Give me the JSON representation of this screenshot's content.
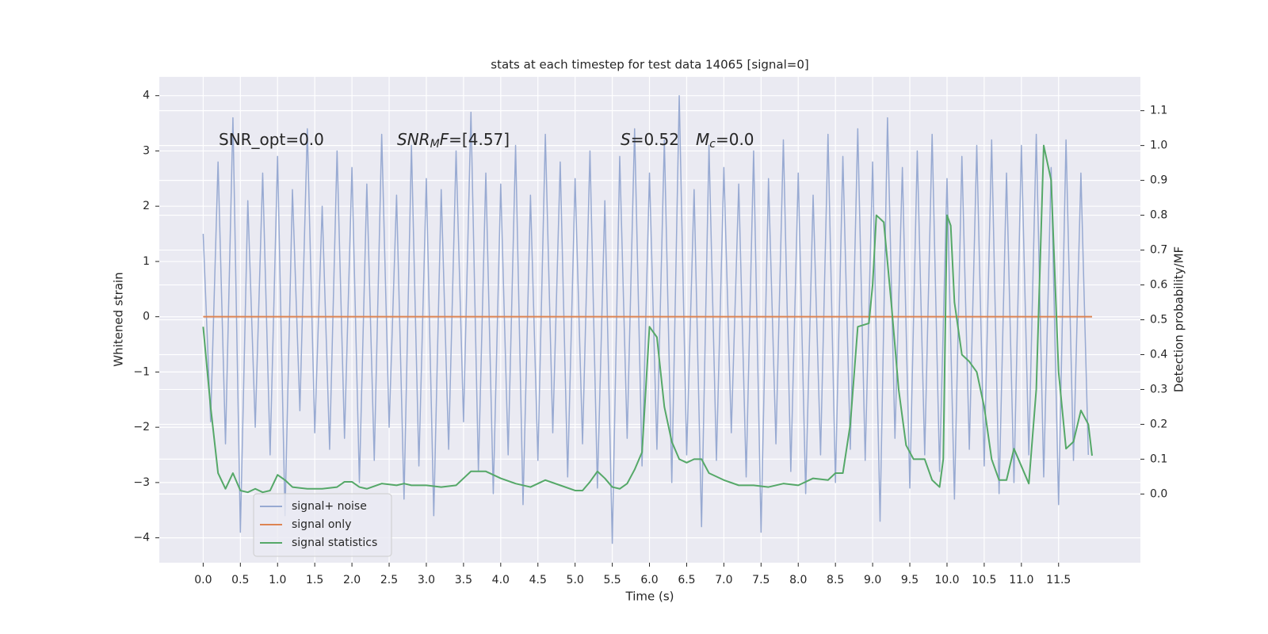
{
  "chart_data": {
    "type": "line",
    "title": "stats at each timestep for test data 14065 [signal=0]",
    "x_label": "Time (s)",
    "y_label": "Whitened strain",
    "y2_label": "Detection probability/MF",
    "xlim": [
      -0.59,
      12.6
    ],
    "ylim": [
      -4.45,
      4.34
    ],
    "y2lim": [
      -0.197,
      1.197
    ],
    "grid": true,
    "legend": "lower left",
    "xticks": [
      {
        "value": 0,
        "label": "0.0"
      },
      {
        "value": 0.5,
        "label": "0.5"
      },
      {
        "value": 1,
        "label": "1.0"
      },
      {
        "value": 1.5,
        "label": "1.5"
      },
      {
        "value": 2,
        "label": "2.0"
      },
      {
        "value": 2.5,
        "label": "2.5"
      },
      {
        "value": 3,
        "label": "3.0"
      },
      {
        "value": 3.5,
        "label": "3.5"
      },
      {
        "value": 4,
        "label": "4.0"
      },
      {
        "value": 4.5,
        "label": "4.5"
      },
      {
        "value": 5,
        "label": "5.0"
      },
      {
        "value": 5.5,
        "label": "5.5"
      },
      {
        "value": 6,
        "label": "6.0"
      },
      {
        "value": 6.5,
        "label": "6.5"
      },
      {
        "value": 7,
        "label": "7.0"
      },
      {
        "value": 7.5,
        "label": "7.5"
      },
      {
        "value": 8,
        "label": "8.0"
      },
      {
        "value": 8.5,
        "label": "8.5"
      },
      {
        "value": 9,
        "label": "9.0"
      },
      {
        "value": 9.5,
        "label": "9.5"
      },
      {
        "value": 10,
        "label": "10.0"
      },
      {
        "value": 10.5,
        "label": "10.5"
      },
      {
        "value": 11,
        "label": "11.0"
      },
      {
        "value": 11.5,
        "label": "11.5"
      }
    ],
    "yticks": [
      {
        "value": -4,
        "label": "−4"
      },
      {
        "value": -3,
        "label": "−3"
      },
      {
        "value": -2,
        "label": "−2"
      },
      {
        "value": -1,
        "label": "−1"
      },
      0,
      1,
      2,
      3,
      4
    ],
    "y2ticks": [
      {
        "value": 0,
        "label": "0.0"
      },
      {
        "value": 0.1,
        "label": "0.1"
      },
      {
        "value": 0.2,
        "label": "0.2"
      },
      {
        "value": 0.3,
        "label": "0.3"
      },
      {
        "value": 0.4,
        "label": "0.4"
      },
      {
        "value": 0.5,
        "label": "0.5"
      },
      {
        "value": 0.6,
        "label": "0.6"
      },
      {
        "value": 0.7,
        "label": "0.7"
      },
      {
        "value": 0.8,
        "label": "0.8"
      },
      {
        "value": 0.9,
        "label": "0.9"
      },
      {
        "value": 1,
        "label": "1.0"
      },
      {
        "value": 1.1,
        "label": "1.1"
      }
    ],
    "annotations": [
      [
        {
          "text": "SNR_opt=0.0",
          "style": "normal"
        }
      ],
      [
        {
          "text": "SNR",
          "style": "italic"
        },
        {
          "text": "M",
          "style": "italic-sub"
        },
        {
          "text": "F",
          "style": "italic"
        },
        {
          "text": "=[4.57]",
          "style": "normal"
        }
      ],
      [
        {
          "text": "S",
          "style": "italic"
        },
        {
          "text": "=0.52",
          "style": "normal"
        }
      ],
      [
        {
          "text": "M",
          "style": "italic"
        },
        {
          "text": "c",
          "style": "italic-sub"
        },
        {
          "text": "=0.0",
          "style": "normal"
        }
      ]
    ],
    "series": [
      {
        "name": "signal+ noise",
        "color": "#98aad2",
        "axis": "y",
        "x": [
          0,
          0.1,
          0.2,
          0.3,
          0.4,
          0.5,
          0.6,
          0.7,
          0.8,
          0.9,
          1,
          1.1,
          1.2,
          1.3,
          1.4,
          1.5,
          1.6,
          1.7,
          1.8,
          1.9,
          2,
          2.1,
          2.2,
          2.3,
          2.4,
          2.5,
          2.6,
          2.7,
          2.8,
          2.9,
          3,
          3.1,
          3.2,
          3.3,
          3.4,
          3.5,
          3.6,
          3.7,
          3.8,
          3.9,
          4,
          4.1,
          4.2,
          4.3,
          4.4,
          4.5,
          4.6,
          4.7,
          4.8,
          4.9,
          5,
          5.1,
          5.2,
          5.3,
          5.4,
          5.5,
          5.6,
          5.7,
          5.8,
          5.9,
          6,
          6.1,
          6.2,
          6.3,
          6.4,
          6.5,
          6.6,
          6.7,
          6.8,
          6.9,
          7,
          7.1,
          7.2,
          7.3,
          7.4,
          7.5,
          7.6,
          7.7,
          7.8,
          7.9,
          8,
          8.1,
          8.2,
          8.3,
          8.4,
          8.5,
          8.6,
          8.7,
          8.8,
          8.9,
          9,
          9.1,
          9.2,
          9.3,
          9.4,
          9.5,
          9.6,
          9.7,
          9.8,
          9.9,
          10,
          10.1,
          10.2,
          10.3,
          10.4,
          10.5,
          10.6,
          10.7,
          10.8,
          10.9,
          11,
          11.1,
          11.2,
          11.3,
          11.4,
          11.5,
          11.6,
          11.7,
          11.8,
          11.9
        ],
        "values": [
          1.5,
          -1.9,
          2.8,
          -2.3,
          3.6,
          -3.9,
          2.1,
          -2.0,
          2.6,
          -2.5,
          2.9,
          -3.6,
          2.3,
          -1.7,
          3.4,
          -2.1,
          2.0,
          -2.4,
          3.0,
          -2.2,
          2.7,
          -3.0,
          2.4,
          -2.6,
          3.3,
          -2.0,
          2.2,
          -3.3,
          3.1,
          -2.7,
          2.5,
          -3.6,
          2.3,
          -2.4,
          3.0,
          -1.9,
          3.7,
          -2.8,
          2.6,
          -3.2,
          2.4,
          -2.5,
          3.1,
          -3.4,
          2.2,
          -2.6,
          3.3,
          -2.1,
          2.8,
          -2.9,
          2.5,
          -2.3,
          3.0,
          -3.1,
          2.1,
          -4.1,
          2.9,
          -2.2,
          3.4,
          -2.7,
          2.6,
          -2.4,
          3.2,
          -3.0,
          4.0,
          -2.5,
          2.3,
          -3.8,
          3.1,
          -2.6,
          2.7,
          -2.1,
          2.4,
          -2.9,
          3.0,
          -3.9,
          2.5,
          -2.3,
          3.2,
          -2.8,
          2.6,
          -3.2,
          2.2,
          -2.5,
          3.3,
          -3.0,
          2.9,
          -2.4,
          3.4,
          -2.6,
          2.8,
          -3.7,
          3.6,
          -2.2,
          2.7,
          -3.1,
          3.0,
          -2.5,
          3.3,
          -2.8,
          2.5,
          -3.3,
          2.9,
          -2.4,
          3.1,
          -2.7,
          3.2,
          -3.2,
          2.6,
          -3.0,
          3.1,
          -2.5,
          3.3,
          -2.9,
          2.7,
          -3.4,
          3.2,
          -2.6,
          2.6,
          -2.5
        ]
      },
      {
        "name": "signal only",
        "color": "#dd8452",
        "axis": "y",
        "x": [
          0,
          11.95
        ],
        "values": [
          0,
          0
        ]
      },
      {
        "name": "signal statistics",
        "color": "#55a868",
        "axis": "y2",
        "x": [
          0,
          0.1,
          0.2,
          0.3,
          0.4,
          0.5,
          0.6,
          0.7,
          0.8,
          0.9,
          1.0,
          1.1,
          1.2,
          1.4,
          1.6,
          1.8,
          1.9,
          2.0,
          2.1,
          2.2,
          2.4,
          2.6,
          2.7,
          2.8,
          3.0,
          3.2,
          3.4,
          3.5,
          3.6,
          3.8,
          4.0,
          4.2,
          4.4,
          4.5,
          4.6,
          4.8,
          5.0,
          5.1,
          5.2,
          5.3,
          5.4,
          5.5,
          5.6,
          5.7,
          5.8,
          5.9,
          5.95,
          6.0,
          6.1,
          6.2,
          6.3,
          6.4,
          6.5,
          6.6,
          6.7,
          6.8,
          7.0,
          7.2,
          7.4,
          7.6,
          7.8,
          8.0,
          8.2,
          8.4,
          8.5,
          8.6,
          8.7,
          8.8,
          8.95,
          9.0,
          9.05,
          9.15,
          9.25,
          9.35,
          9.45,
          9.55,
          9.7,
          9.8,
          9.9,
          9.95,
          10.0,
          10.05,
          10.1,
          10.2,
          10.3,
          10.4,
          10.5,
          10.6,
          10.7,
          10.8,
          10.9,
          11.0,
          11.1,
          11.2,
          11.3,
          11.4,
          11.5,
          11.6,
          11.7,
          11.8,
          11.9,
          11.95
        ],
        "values": [
          0.48,
          0.25,
          0.06,
          0.015,
          0.06,
          0.01,
          0.005,
          0.015,
          0.005,
          0.01,
          0.055,
          0.04,
          0.02,
          0.015,
          0.015,
          0.02,
          0.035,
          0.035,
          0.02,
          0.015,
          0.03,
          0.025,
          0.03,
          0.025,
          0.025,
          0.02,
          0.025,
          0.045,
          0.065,
          0.065,
          0.045,
          0.03,
          0.02,
          0.03,
          0.04,
          0.025,
          0.01,
          0.01,
          0.035,
          0.065,
          0.045,
          0.02,
          0.015,
          0.03,
          0.07,
          0.12,
          0.3,
          0.48,
          0.45,
          0.25,
          0.15,
          0.1,
          0.09,
          0.1,
          0.1,
          0.06,
          0.04,
          0.025,
          0.025,
          0.02,
          0.03,
          0.025,
          0.045,
          0.04,
          0.06,
          0.06,
          0.2,
          0.48,
          0.49,
          0.6,
          0.8,
          0.78,
          0.55,
          0.3,
          0.14,
          0.1,
          0.1,
          0.04,
          0.02,
          0.1,
          0.8,
          0.77,
          0.55,
          0.4,
          0.38,
          0.35,
          0.25,
          0.1,
          0.04,
          0.04,
          0.13,
          0.08,
          0.03,
          0.3,
          1.0,
          0.9,
          0.35,
          0.13,
          0.15,
          0.24,
          0.2,
          0.11
        ]
      }
    ]
  }
}
